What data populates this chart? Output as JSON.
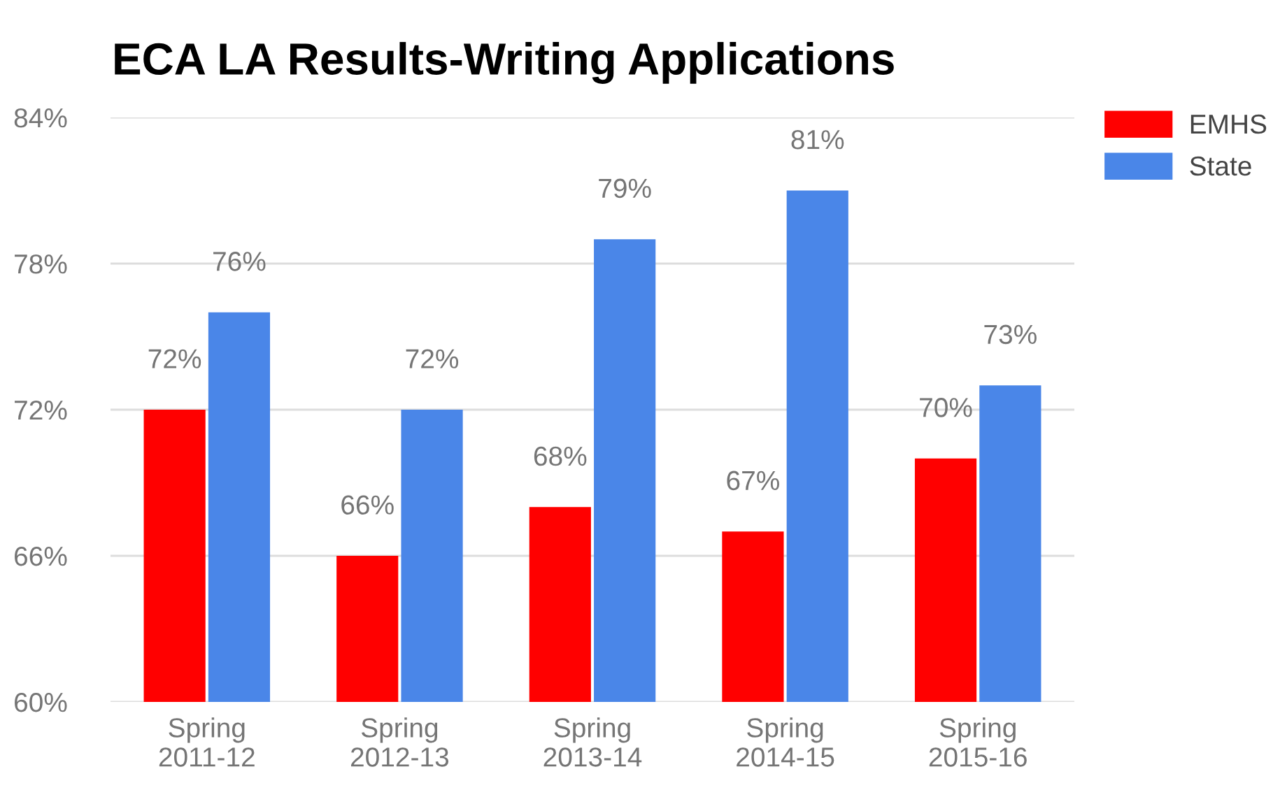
{
  "chart_data": {
    "type": "bar",
    "title": "ECA LA Results-Writing Applications",
    "categories": [
      "Spring\n2011-12",
      "Spring\n2012-13",
      "Spring\n2013-14",
      "Spring\n2014-15",
      "Spring\n2015-16"
    ],
    "series": [
      {
        "name": "EMHS",
        "color": "#ff0000",
        "values": [
          72,
          66,
          68,
          67,
          70
        ],
        "value_labels": [
          "72%",
          "66%",
          "68%",
          "67%",
          "70%"
        ]
      },
      {
        "name": "State",
        "color": "#4a86e8",
        "values": [
          76,
          72,
          79,
          81,
          73
        ],
        "value_labels": [
          "76%",
          "72%",
          "79%",
          "81%",
          "73%"
        ]
      }
    ],
    "ylim": [
      60,
      84
    ],
    "yticks": [
      {
        "value": 60,
        "label": "60%"
      },
      {
        "value": 66,
        "label": "66%"
      },
      {
        "value": 72,
        "label": "72%"
      },
      {
        "value": 78,
        "label": "78%"
      },
      {
        "value": 84,
        "label": "84%"
      }
    ],
    "grid": "y",
    "legend": "top right"
  }
}
